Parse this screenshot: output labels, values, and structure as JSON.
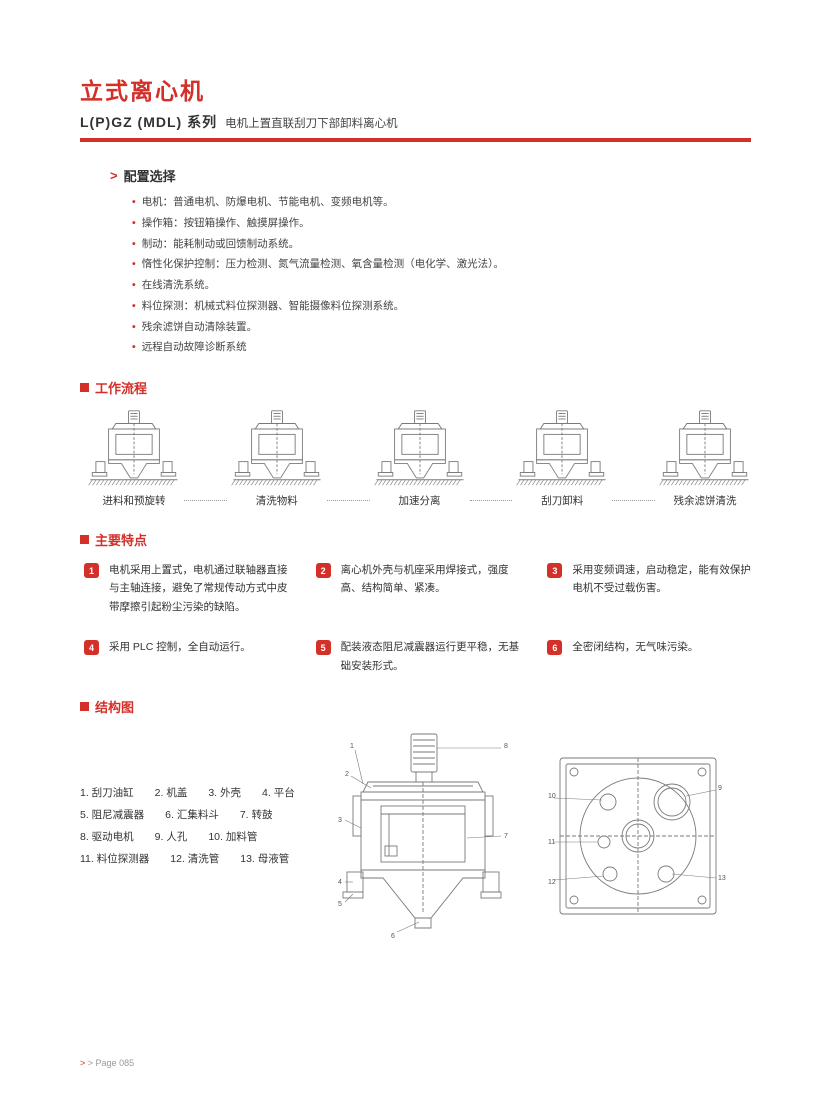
{
  "header": {
    "title": "立式离心机",
    "series": "L(P)GZ (MDL) 系列",
    "seriesDesc": "电机上置直联刮刀下部卸料离心机"
  },
  "config": {
    "heading": "配置选择",
    "items": [
      "电机：普通电机、防爆电机、节能电机、变频电机等。",
      "操作箱：按钮箱操作、触摸屏操作。",
      "制动：能耗制动或回馈制动系统。",
      "惰性化保护控制：压力检测、氮气流量检测、氧含量检测（电化学、激光法）。",
      "在线清洗系统。",
      "料位探测：机械式料位探测器、智能摄像料位探测系统。",
      "残余滤饼自动清除装置。",
      "远程自动故障诊断系统"
    ]
  },
  "workflow": {
    "heading": "工作流程",
    "steps": [
      "进料和预旋转",
      "清洗物料",
      "加速分离",
      "刮刀卸料",
      "残余滤饼清洗"
    ]
  },
  "features": {
    "heading": "主要特点",
    "items": [
      {
        "n": "1",
        "t": "电机采用上置式，电机通过联轴器直接与主轴连接，避免了常规传动方式中皮带摩擦引起粉尘污染的缺陷。"
      },
      {
        "n": "2",
        "t": "离心机外壳与机座采用焊接式，强度高、结构简单、紧凑。"
      },
      {
        "n": "3",
        "t": "采用变频调速，启动稳定，能有效保护电机不受过载伤害。"
      },
      {
        "n": "4",
        "t": "采用 PLC 控制，全自动运行。"
      },
      {
        "n": "5",
        "t": "配装液态阻尼减震器运行更平稳，无基础安装形式。"
      },
      {
        "n": "6",
        "t": "全密闭结构，无气味污染。"
      }
    ]
  },
  "structure": {
    "heading": "结构图",
    "legend": [
      "1. 刮刀油缸　　2. 机盖　　3. 外壳　　4. 平台",
      "5. 阻尼减震器　　6. 汇集料斗　　7. 转鼓",
      "8. 驱动电机　　9. 人孔　　10. 加料管",
      "11. 料位探测器　　12. 清洗管　　13. 母液管"
    ],
    "callouts": {
      "elev": [
        "1",
        "2",
        "3",
        "4",
        "5",
        "6",
        "7",
        "8"
      ],
      "plan": [
        "9",
        "10",
        "11",
        "12",
        "13"
      ]
    }
  },
  "footer": {
    "label": "> Page",
    "num": "085"
  },
  "colors": {
    "accent": "#d3302a",
    "line": "#7a7a7a",
    "hatch": "#999"
  }
}
